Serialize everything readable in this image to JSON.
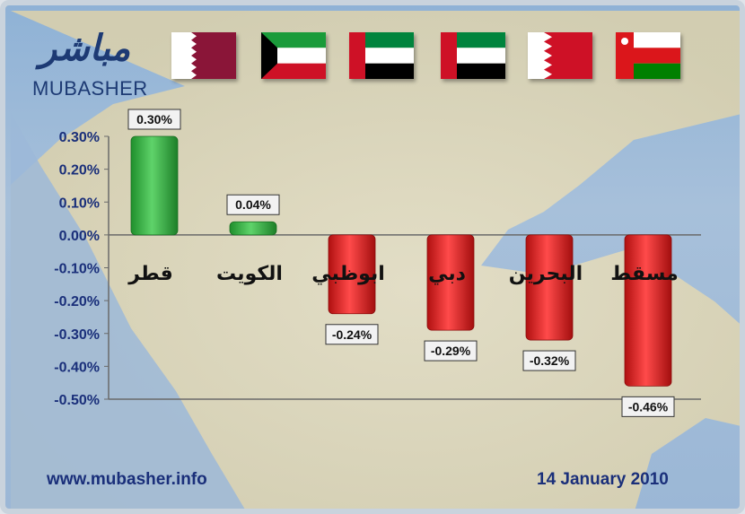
{
  "brand": {
    "logo_arabic": "مباشر",
    "logo_english": "MUBASHER"
  },
  "footer": {
    "website": "www.mubasher.info",
    "date": "14 January 2010"
  },
  "flags": [
    {
      "country": "Qatar",
      "icon": "qatar-flag"
    },
    {
      "country": "Kuwait",
      "icon": "kuwait-flag"
    },
    {
      "country": "United Arab Emirates",
      "icon": "uae-flag"
    },
    {
      "country": "United Arab Emirates",
      "icon": "uae-flag"
    },
    {
      "country": "Bahrain",
      "icon": "bahrain-flag"
    },
    {
      "country": "Oman",
      "icon": "oman-flag"
    }
  ],
  "colors": {
    "positive": "#2fae3c",
    "negative": "#dc2020",
    "axis_text": "#1a2f7a",
    "title_blue": "#1d3a74"
  },
  "chart_data": {
    "type": "bar",
    "categories": [
      "قطر",
      "الكويت",
      "ابوظبي",
      "دبي",
      "البحرين",
      "مسقط"
    ],
    "values": [
      0.3,
      0.04,
      -0.24,
      -0.29,
      -0.32,
      -0.46
    ],
    "value_labels": [
      "0.30%",
      "0.04%",
      "-0.24%",
      "-0.29%",
      "-0.32%",
      "-0.46%"
    ],
    "yticks": [
      "0.30%",
      "0.20%",
      "0.10%",
      "0.00%",
      "-0.10%",
      "-0.20%",
      "-0.30%",
      "-0.40%",
      "-0.50%"
    ],
    "ytick_values": [
      0.3,
      0.2,
      0.1,
      0.0,
      -0.1,
      -0.2,
      -0.3,
      -0.4,
      -0.5
    ],
    "ylim": [
      -0.5,
      0.3
    ],
    "title": "",
    "xlabel": "",
    "ylabel": "",
    "grid": false,
    "legend": "none"
  }
}
